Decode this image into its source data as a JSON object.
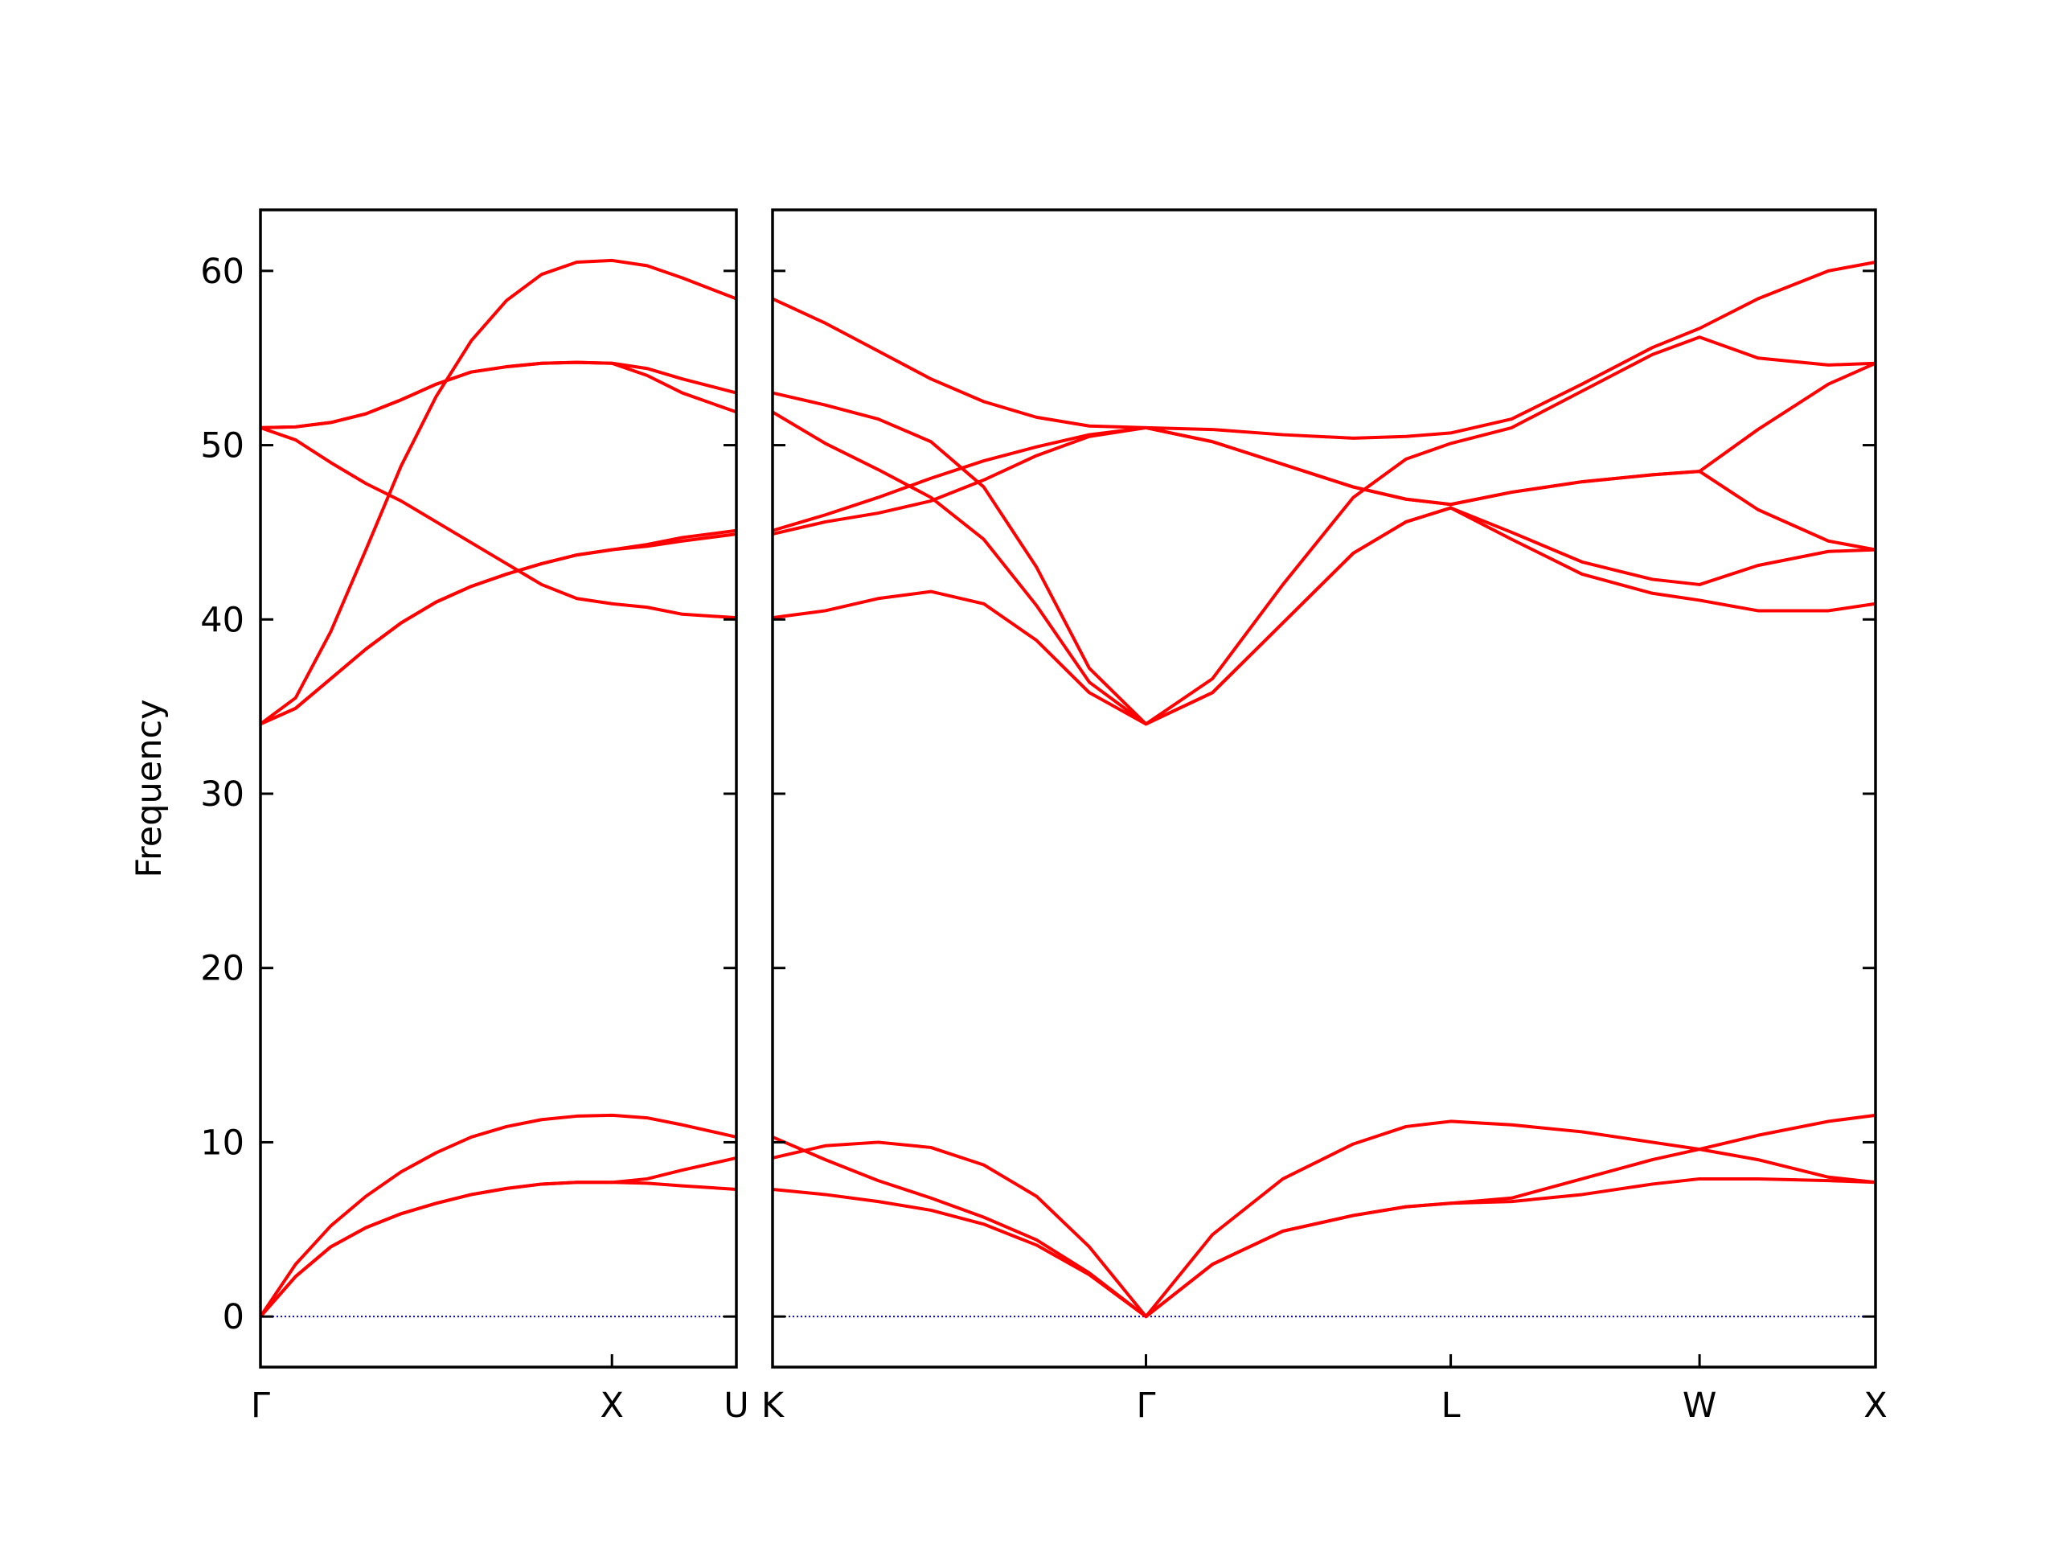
{
  "chart_data": [
    {
      "type": "line",
      "x": [
        0,
        0.1,
        0.2,
        0.3,
        0.4,
        0.5,
        0.6,
        0.7,
        0.8,
        0.9,
        1.0,
        1.1,
        1.2,
        1.354
      ],
      "xlim": [
        0,
        1.354
      ],
      "xticks": [
        {
          "value": 0,
          "label": "Γ"
        },
        {
          "value": 1,
          "label": "X"
        },
        {
          "value": 1.354,
          "label": "U"
        }
      ],
      "ylim": [
        -2.9,
        63.5
      ],
      "yticks": [
        0,
        10,
        20,
        30,
        40,
        50,
        60
      ],
      "ylabel": "Frequency",
      "color": "#ff0000",
      "hlines": [
        0
      ],
      "hline_color": "#0000cc",
      "series": [
        {
          "values": [
            0,
            2.3,
            4.0,
            5.1,
            5.9,
            6.5,
            7.0,
            7.35,
            7.6,
            7.7,
            7.7,
            7.65,
            7.5,
            7.3
          ]
        },
        {
          "values": [
            0,
            2.3,
            4.0,
            5.1,
            5.9,
            6.5,
            7.0,
            7.35,
            7.6,
            7.7,
            7.7,
            7.9,
            8.4,
            9.1
          ]
        },
        {
          "values": [
            0,
            3.0,
            5.2,
            6.9,
            8.3,
            9.4,
            10.3,
            10.9,
            11.3,
            11.5,
            11.55,
            11.4,
            11.0,
            10.3
          ]
        },
        {
          "values": [
            51,
            50.3,
            49.0,
            47.8,
            46.8,
            45.6,
            44.4,
            43.2,
            42.0,
            41.2,
            40.9,
            40.7,
            40.3,
            40.1
          ]
        },
        {
          "values": [
            34,
            34.9,
            36.6,
            38.3,
            39.8,
            41.0,
            41.9,
            42.6,
            43.2,
            43.7,
            44.0,
            44.2,
            44.5,
            44.9
          ]
        },
        {
          "values": [
            34,
            34.9,
            36.6,
            38.3,
            39.8,
            41.0,
            41.9,
            42.6,
            43.2,
            43.7,
            44.0,
            44.3,
            44.7,
            45.1
          ]
        },
        {
          "values": [
            34,
            35.5,
            39.3,
            44.0,
            48.8,
            52.8,
            56.0,
            58.3,
            59.8,
            60.5,
            60.6,
            60.3,
            59.6,
            58.4
          ]
        },
        {
          "values": [
            51,
            51.05,
            51.3,
            51.8,
            52.6,
            53.5,
            54.2,
            54.5,
            54.7,
            54.75,
            54.7,
            54.4,
            53.8,
            53.0
          ]
        },
        {
          "values": [
            51,
            51.05,
            51.3,
            51.8,
            52.6,
            53.5,
            54.2,
            54.5,
            54.7,
            54.75,
            54.7,
            54.0,
            53.0,
            51.9
          ]
        }
      ]
    },
    {
      "type": "line",
      "x": [
        0,
        0.15,
        0.3,
        0.45,
        0.6,
        0.75,
        0.9,
        1.061,
        1.25,
        1.45,
        1.65,
        1.8,
        1.927,
        2.1,
        2.3,
        2.5,
        2.634,
        2.8,
        3.0,
        3.134
      ],
      "xlim": [
        0,
        3.134
      ],
      "xticks": [
        {
          "value": 0,
          "label": "K"
        },
        {
          "value": 1.061,
          "label": "Γ"
        },
        {
          "value": 1.927,
          "label": "L"
        },
        {
          "value": 2.634,
          "label": "W"
        },
        {
          "value": 3.134,
          "label": "X"
        }
      ],
      "ylim": [
        -2.9,
        63.5
      ],
      "yticks": [
        0,
        10,
        20,
        30,
        40,
        50,
        60
      ],
      "show_ytick_labels": false,
      "color": "#ff0000",
      "hlines": [
        0
      ],
      "hline_color": "#0000cc",
      "series": [
        {
          "values": [
            7.3,
            7.0,
            6.6,
            6.1,
            5.3,
            4.1,
            2.4,
            0,
            3.0,
            4.9,
            5.8,
            6.3,
            6.5,
            6.6,
            7.0,
            7.6,
            7.9,
            7.9,
            7.8,
            7.7
          ]
        },
        {
          "values": [
            10.3,
            9.0,
            7.8,
            6.8,
            5.7,
            4.4,
            2.5,
            0,
            3.0,
            4.9,
            5.8,
            6.3,
            6.5,
            6.8,
            7.9,
            9.0,
            9.6,
            9.0,
            8.0,
            7.7
          ]
        },
        {
          "values": [
            9.1,
            9.8,
            10.0,
            9.7,
            8.7,
            6.9,
            4.0,
            0,
            4.7,
            7.9,
            9.9,
            10.9,
            11.2,
            11.0,
            10.6,
            10.0,
            9.6,
            10.4,
            11.2,
            11.55
          ]
        },
        {
          "values": [
            58.4,
            57.0,
            55.4,
            53.8,
            52.5,
            51.6,
            51.1,
            51.0,
            50.9,
            50.6,
            50.4,
            50.5,
            50.7,
            51.5,
            53.5,
            55.6,
            56.7,
            58.4,
            60.0,
            60.5
          ]
        },
        {
          "values": [
            53.0,
            52.3,
            51.5,
            50.2,
            47.6,
            43.0,
            37.2,
            34,
            36.6,
            42.0,
            47.0,
            49.2,
            50.1,
            51.0,
            53.1,
            55.2,
            56.2,
            55.0,
            54.6,
            54.7
          ]
        },
        {
          "values": [
            51.9,
            50.1,
            48.6,
            47.0,
            44.6,
            40.8,
            36.4,
            34,
            35.8,
            39.8,
            43.8,
            45.6,
            46.4,
            45.0,
            43.3,
            42.3,
            42.0,
            43.1,
            43.9,
            44.0
          ]
        },
        {
          "values": [
            40.1,
            40.5,
            41.2,
            41.6,
            40.9,
            38.8,
            35.8,
            34,
            35.8,
            39.8,
            43.8,
            45.6,
            46.4,
            44.6,
            42.6,
            41.5,
            41.1,
            40.5,
            40.5,
            40.9
          ]
        },
        {
          "values": [
            45.1,
            46.0,
            47.0,
            48.1,
            49.1,
            49.9,
            50.6,
            51,
            50.2,
            48.9,
            47.6,
            46.9,
            46.6,
            47.3,
            47.9,
            48.3,
            48.5,
            50.9,
            53.5,
            54.7
          ]
        },
        {
          "values": [
            44.9,
            45.6,
            46.1,
            46.8,
            48.0,
            49.4,
            50.5,
            51,
            50.2,
            48.9,
            47.6,
            46.9,
            46.6,
            47.3,
            47.9,
            48.3,
            48.5,
            46.3,
            44.5,
            44.0
          ]
        }
      ]
    }
  ]
}
